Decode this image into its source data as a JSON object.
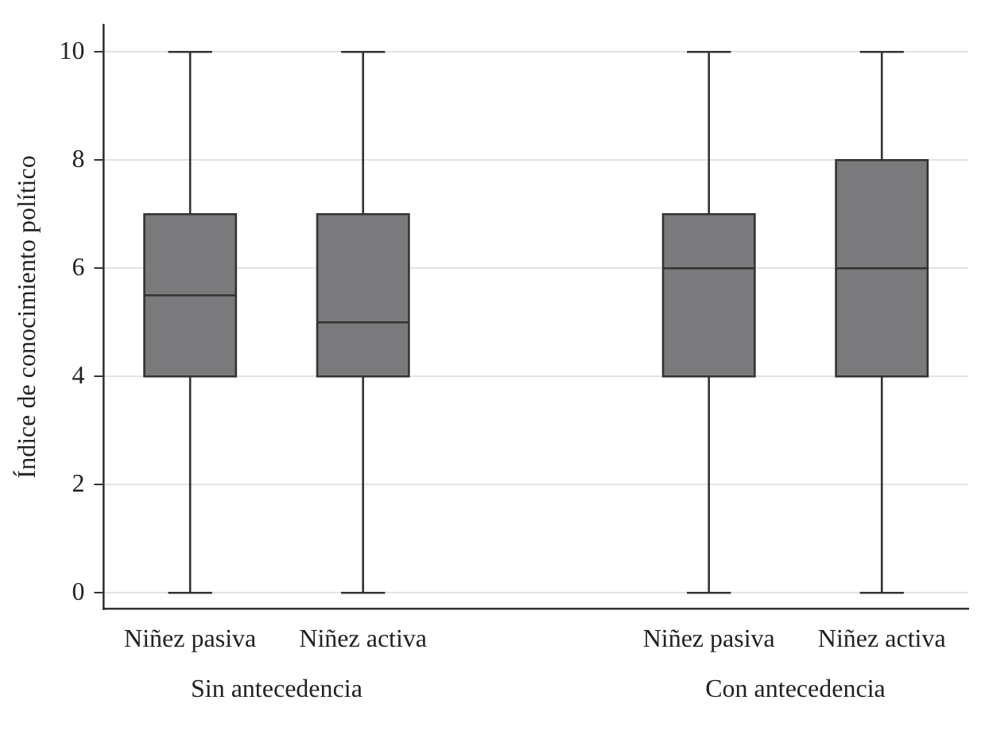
{
  "chart_data": {
    "type": "box",
    "ylabel": "Índice de conocimiento político",
    "categories": [
      "Niñez pasiva",
      "Niñez activa",
      null,
      "Niñez pasiva",
      "Niñez activa"
    ],
    "boxes": [
      {
        "low": 0,
        "q1": 4,
        "median": 5.5,
        "q3": 7,
        "high": 10
      },
      {
        "low": 0,
        "q1": 4,
        "median": 5,
        "q3": 7,
        "high": 10
      },
      null,
      {
        "low": 0,
        "q1": 4,
        "median": 6,
        "q3": 7,
        "high": 10
      },
      {
        "low": 0,
        "q1": 4,
        "median": 6,
        "q3": 8,
        "high": 10
      }
    ],
    "color": "#7a7a7c",
    "ylim": [
      -0.3,
      10.5
    ],
    "yticks": [
      0,
      2,
      4,
      6,
      8,
      10
    ],
    "grid": "y",
    "legend": false,
    "annotations": [
      "Sin antecedencia",
      "Con antecedencia"
    ]
  }
}
